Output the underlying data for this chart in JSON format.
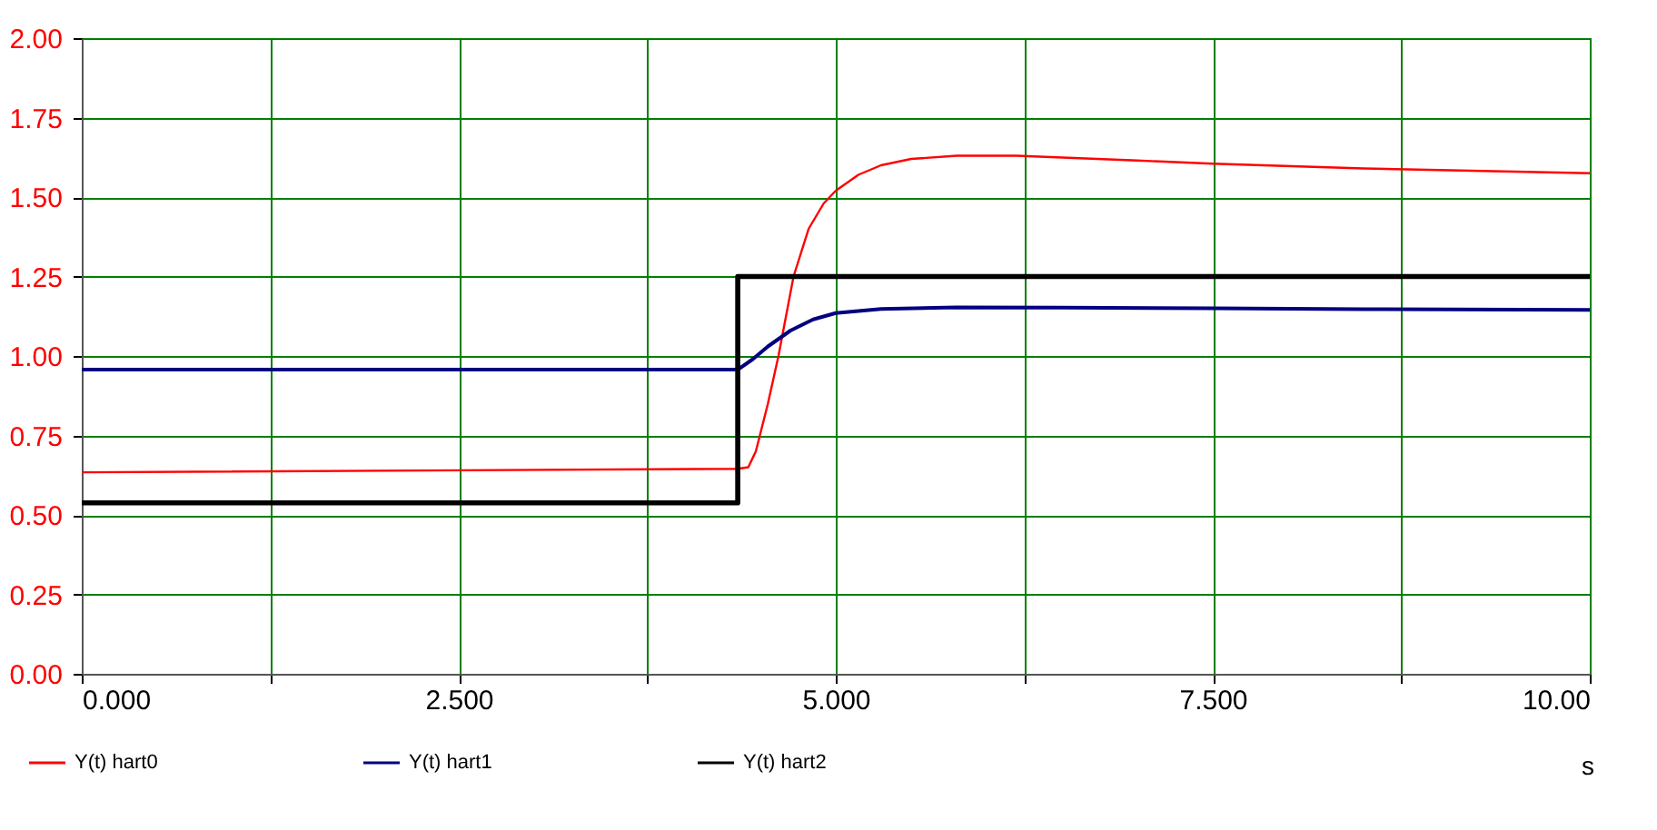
{
  "chart_data": {
    "type": "line",
    "xlabel": "s",
    "xlim": [
      0,
      10
    ],
    "ylim": [
      0,
      2
    ],
    "xticks": [
      {
        "value": 0,
        "label": "0.000"
      },
      {
        "value": 1.25,
        "label": null
      },
      {
        "value": 2.5,
        "label": "2.500"
      },
      {
        "value": 3.75,
        "label": null
      },
      {
        "value": 5,
        "label": "5.000"
      },
      {
        "value": 6.25,
        "label": null
      },
      {
        "value": 7.5,
        "label": "7.500"
      },
      {
        "value": 8.75,
        "label": null
      },
      {
        "value": 10,
        "label": "10.00"
      }
    ],
    "yticks": [
      {
        "value": 0,
        "label": "0.00"
      },
      {
        "value": 0.25,
        "label": "0.25"
      },
      {
        "value": 0.5,
        "label": "0.50"
      },
      {
        "value": 0.75,
        "label": "0.75"
      },
      {
        "value": 1,
        "label": "1.00"
      },
      {
        "value": 1.25,
        "label": "1.25"
      },
      {
        "value": 1.5,
        "label": "1.50"
      },
      {
        "value": 1.75,
        "label": "1.75"
      },
      {
        "value": 2,
        "label": "2.00"
      }
    ],
    "grid": true,
    "legend": "bottom left",
    "marker": "none",
    "line_style": "solid",
    "series": [
      {
        "name": "Y(t) hart0",
        "color": "#ff0000",
        "x": [
          0,
          4.35,
          4.42,
          4.47,
          4.55,
          4.62,
          4.72,
          4.82,
          4.92,
          5.0,
          5.15,
          5.3,
          5.5,
          5.8,
          6.2,
          7.0,
          7.5,
          8.5,
          9.0,
          10
        ],
        "values": [
          0.634,
          0.645,
          0.65,
          0.7,
          0.85,
          1.0,
          1.25,
          1.4,
          1.48,
          1.52,
          1.57,
          1.6,
          1.62,
          1.63,
          1.63,
          1.615,
          1.605,
          1.59,
          1.585,
          1.575
        ]
      },
      {
        "name": "Y(t) hart1",
        "color": "#000080",
        "x": [
          0,
          4.35,
          4.45,
          4.55,
          4.7,
          4.85,
          5.0,
          5.3,
          5.8,
          6.5,
          7.5,
          8.5,
          10
        ],
        "values": [
          0.957,
          0.957,
          0.99,
          1.03,
          1.08,
          1.115,
          1.135,
          1.148,
          1.153,
          1.152,
          1.15,
          1.147,
          1.145
        ]
      },
      {
        "name": "Y(t) hart2",
        "color": "#000000",
        "x": [
          0,
          4.35,
          4.35,
          10
        ],
        "values": [
          0.538,
          0.538,
          1.25,
          1.25
        ]
      }
    ]
  }
}
